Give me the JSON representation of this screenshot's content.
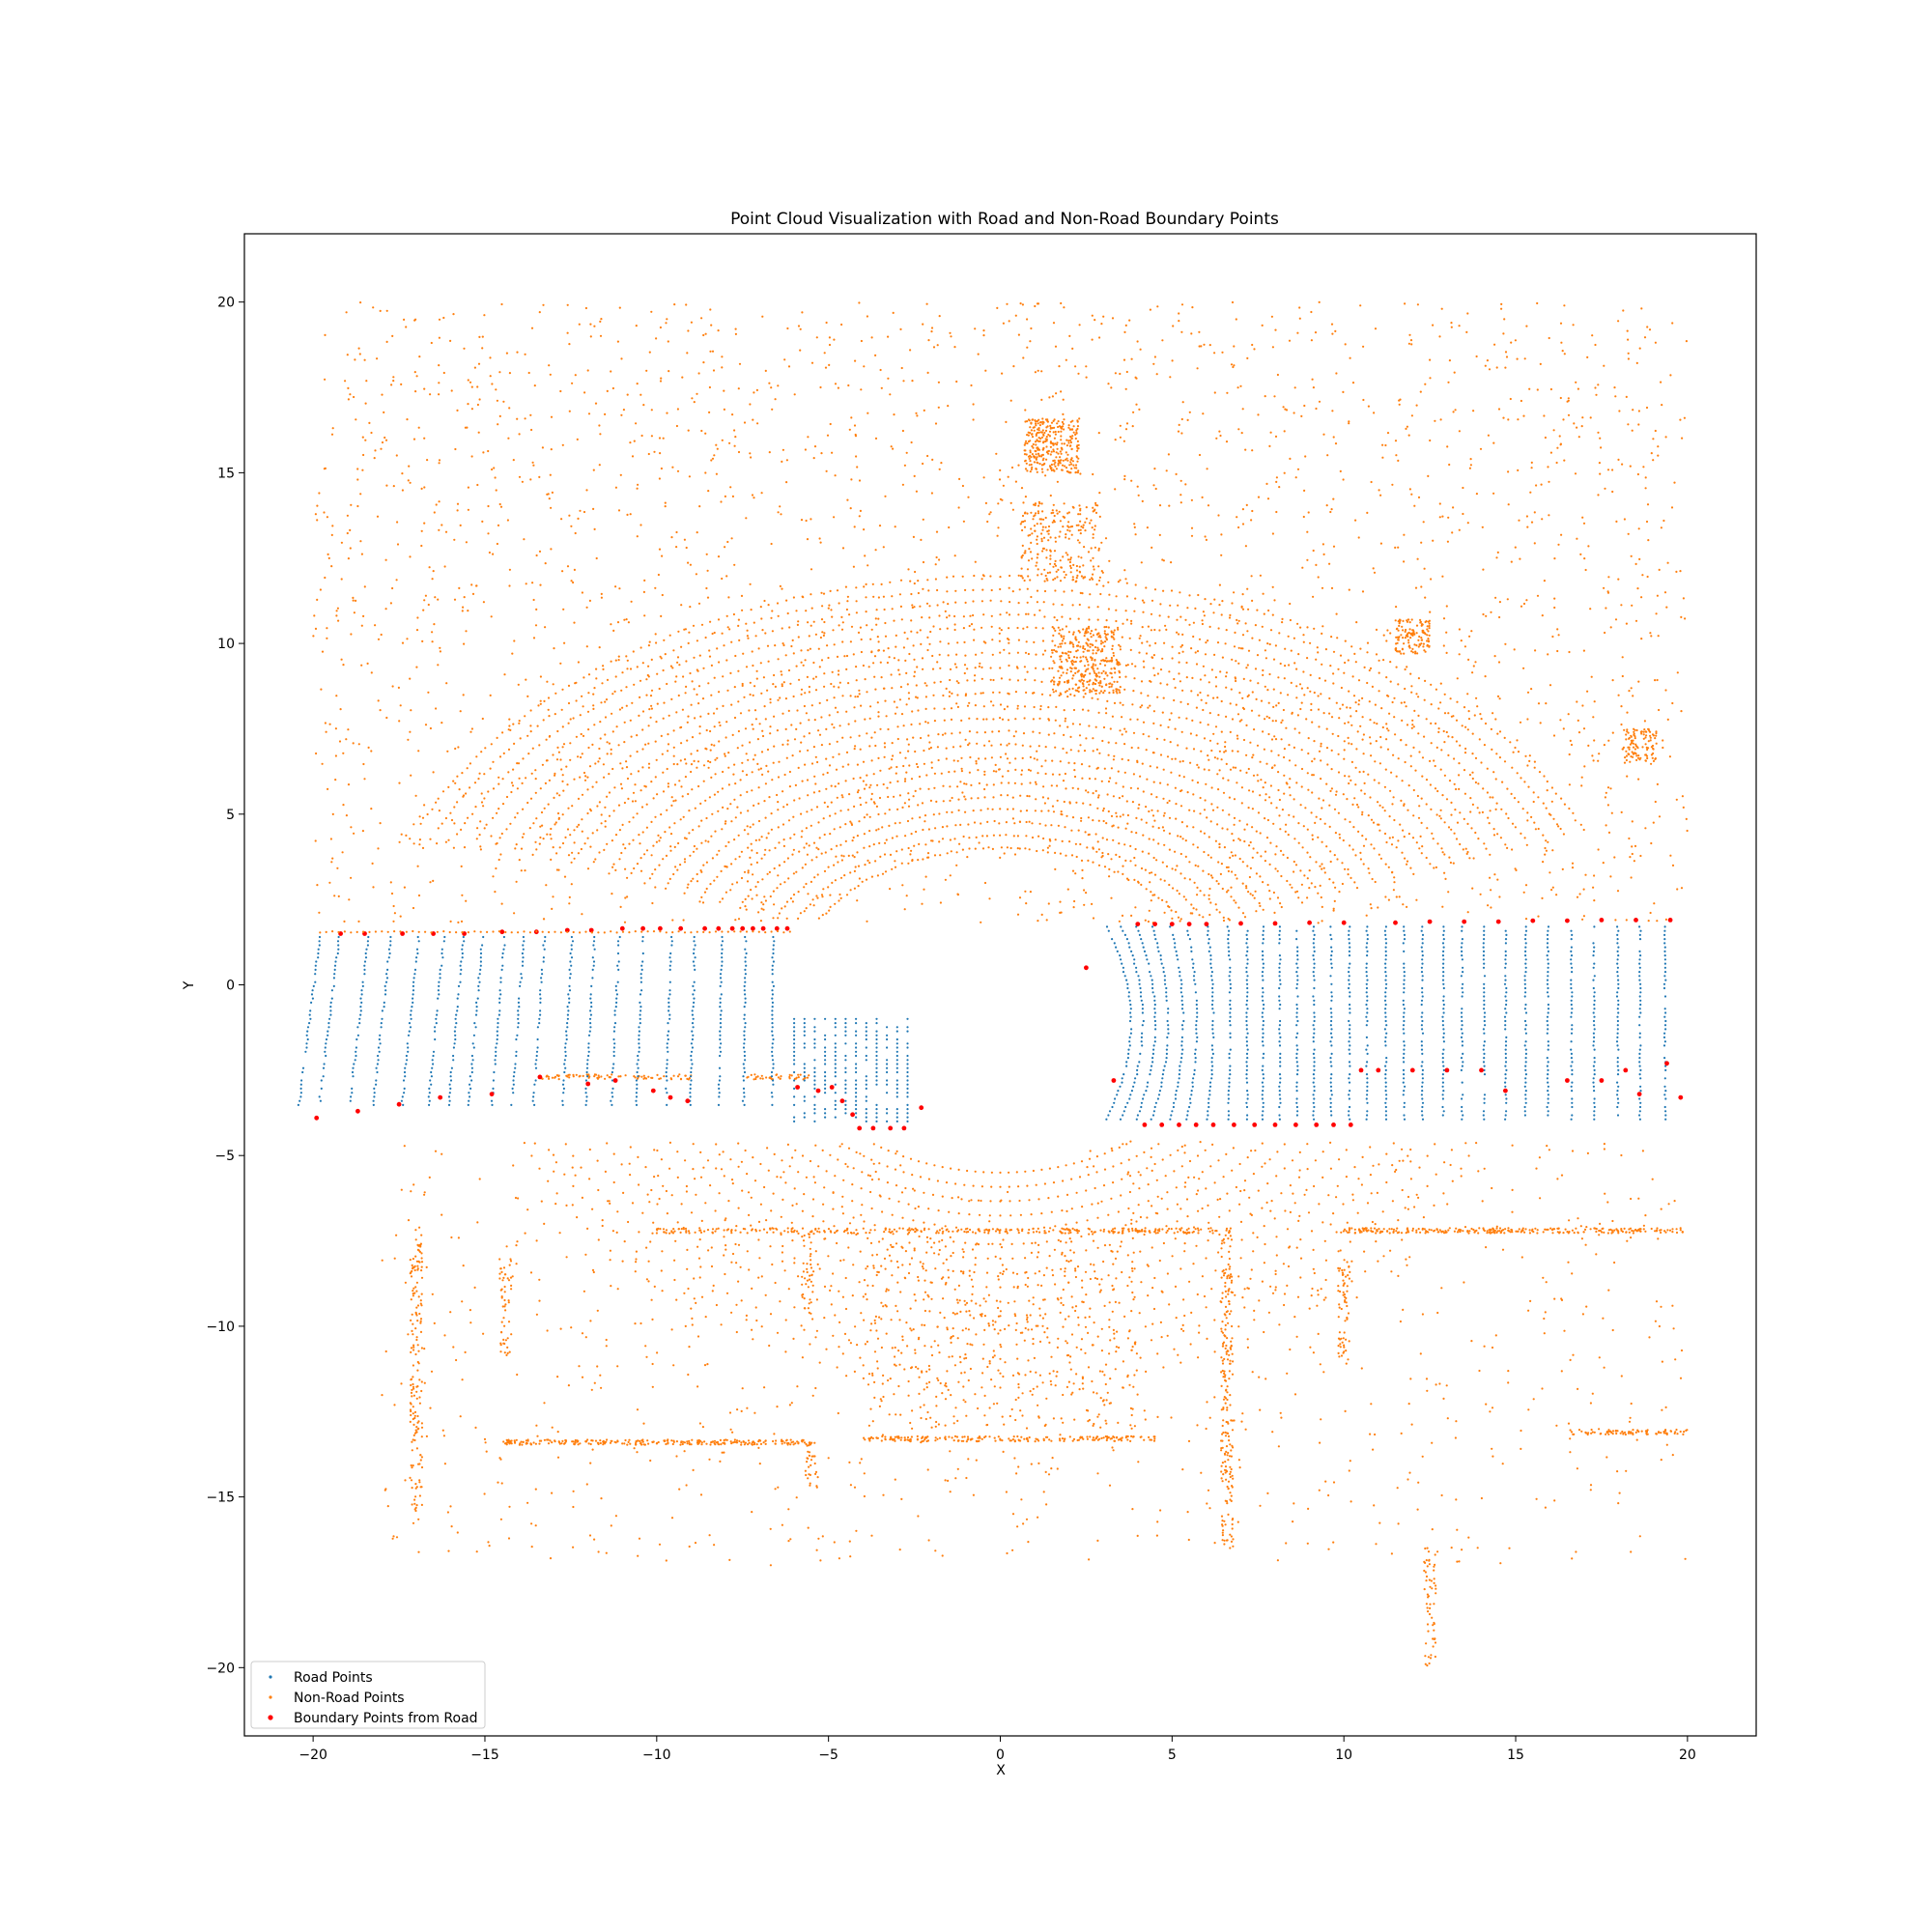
{
  "chart_data": {
    "type": "scatter",
    "title": "Point Cloud Visualization with Road and Non-Road Boundary Points",
    "xlabel": "X",
    "ylabel": "Y",
    "xlim": [
      -22,
      22
    ],
    "ylim": [
      -22,
      22
    ],
    "x_ticks": [
      -20,
      -15,
      -10,
      -5,
      0,
      5,
      10,
      15,
      20
    ],
    "y_ticks": [
      -20,
      -15,
      -10,
      -5,
      0,
      5,
      10,
      15,
      20
    ],
    "grid": false,
    "legend_position": "lower-left",
    "series": [
      {
        "name": "Road Points",
        "color": "#1f77b4"
      },
      {
        "name": "Non-Road Points",
        "color": "#ff7f0e"
      },
      {
        "name": "Boundary Points from Road",
        "color": "#ff0000"
      }
    ],
    "road_regions": {
      "left": {
        "x_range": [
          -20,
          -6
        ],
        "y_range": [
          -4.0,
          1.6
        ]
      },
      "right": {
        "x_range": [
          3.6,
          20
        ],
        "y_range": [
          -4.2,
          1.8
        ]
      }
    },
    "boundary_points": [
      [
        -19.9,
        -3.9
      ],
      [
        -19.2,
        1.5
      ],
      [
        -18.7,
        -3.7
      ],
      [
        -18.5,
        1.5
      ],
      [
        -17.5,
        -3.5
      ],
      [
        -17.4,
        1.5
      ],
      [
        -16.3,
        -3.3
      ],
      [
        -16.5,
        1.5
      ],
      [
        -15.6,
        1.5
      ],
      [
        -14.8,
        -3.2
      ],
      [
        -14.5,
        1.55
      ],
      [
        -13.5,
        1.55
      ],
      [
        -13.4,
        -2.7
      ],
      [
        -12.6,
        1.6
      ],
      [
        -12.0,
        -2.9
      ],
      [
        -11.9,
        1.6
      ],
      [
        -11.2,
        -2.8
      ],
      [
        -11.0,
        1.65
      ],
      [
        -10.4,
        1.65
      ],
      [
        -10.1,
        -3.1
      ],
      [
        -9.9,
        1.65
      ],
      [
        -9.6,
        -3.3
      ],
      [
        -9.3,
        1.65
      ],
      [
        -9.1,
        -3.4
      ],
      [
        -8.6,
        1.65
      ],
      [
        -8.2,
        1.65
      ],
      [
        -7.8,
        1.65
      ],
      [
        -7.5,
        1.65
      ],
      [
        -7.2,
        1.65
      ],
      [
        -6.9,
        1.65
      ],
      [
        -6.5,
        1.65
      ],
      [
        -6.2,
        1.65
      ],
      [
        -5.9,
        -3.0
      ],
      [
        -5.3,
        -3.1
      ],
      [
        -4.9,
        -3.0
      ],
      [
        -4.6,
        -3.4
      ],
      [
        -4.3,
        -3.8
      ],
      [
        -4.1,
        -4.2
      ],
      [
        -3.7,
        -4.2
      ],
      [
        -3.2,
        -4.2
      ],
      [
        -2.8,
        -4.2
      ],
      [
        -2.3,
        -3.6
      ],
      [
        2.5,
        0.5
      ],
      [
        3.3,
        -2.8
      ],
      [
        4.0,
        1.78
      ],
      [
        4.5,
        1.78
      ],
      [
        5.0,
        1.78
      ],
      [
        5.5,
        1.78
      ],
      [
        6.0,
        1.78
      ],
      [
        4.2,
        -4.1
      ],
      [
        4.7,
        -4.1
      ],
      [
        5.2,
        -4.1
      ],
      [
        5.7,
        -4.1
      ],
      [
        6.2,
        -4.1
      ],
      [
        6.8,
        -4.1
      ],
      [
        7.4,
        -4.1
      ],
      [
        8.0,
        -4.1
      ],
      [
        8.6,
        -4.1
      ],
      [
        9.2,
        -4.1
      ],
      [
        9.7,
        -4.1
      ],
      [
        10.2,
        -4.1
      ],
      [
        7.0,
        1.8
      ],
      [
        8.0,
        1.8
      ],
      [
        9.0,
        1.82
      ],
      [
        10.0,
        1.82
      ],
      [
        10.5,
        -2.5
      ],
      [
        11.0,
        -2.5
      ],
      [
        11.5,
        1.82
      ],
      [
        12.5,
        1.85
      ],
      [
        13.5,
        1.85
      ],
      [
        14.5,
        1.85
      ],
      [
        15.5,
        1.88
      ],
      [
        16.5,
        1.88
      ],
      [
        17.5,
        1.9
      ],
      [
        18.5,
        1.9
      ],
      [
        19.5,
        1.9
      ],
      [
        12.0,
        -2.5
      ],
      [
        13.0,
        -2.5
      ],
      [
        14.0,
        -2.5
      ],
      [
        14.7,
        -3.1
      ],
      [
        16.5,
        -2.8
      ],
      [
        17.5,
        -2.8
      ],
      [
        18.2,
        -2.5
      ],
      [
        18.6,
        -3.2
      ],
      [
        19.4,
        -2.3
      ],
      [
        19.8,
        -3.3
      ]
    ]
  },
  "legend": {
    "items": [
      {
        "label": "Road Points",
        "color": "#1f77b4"
      },
      {
        "label": "Non-Road Points",
        "color": "#ff7f0e"
      },
      {
        "label": "Boundary Points from Road",
        "color": "#ff0000"
      }
    ]
  }
}
